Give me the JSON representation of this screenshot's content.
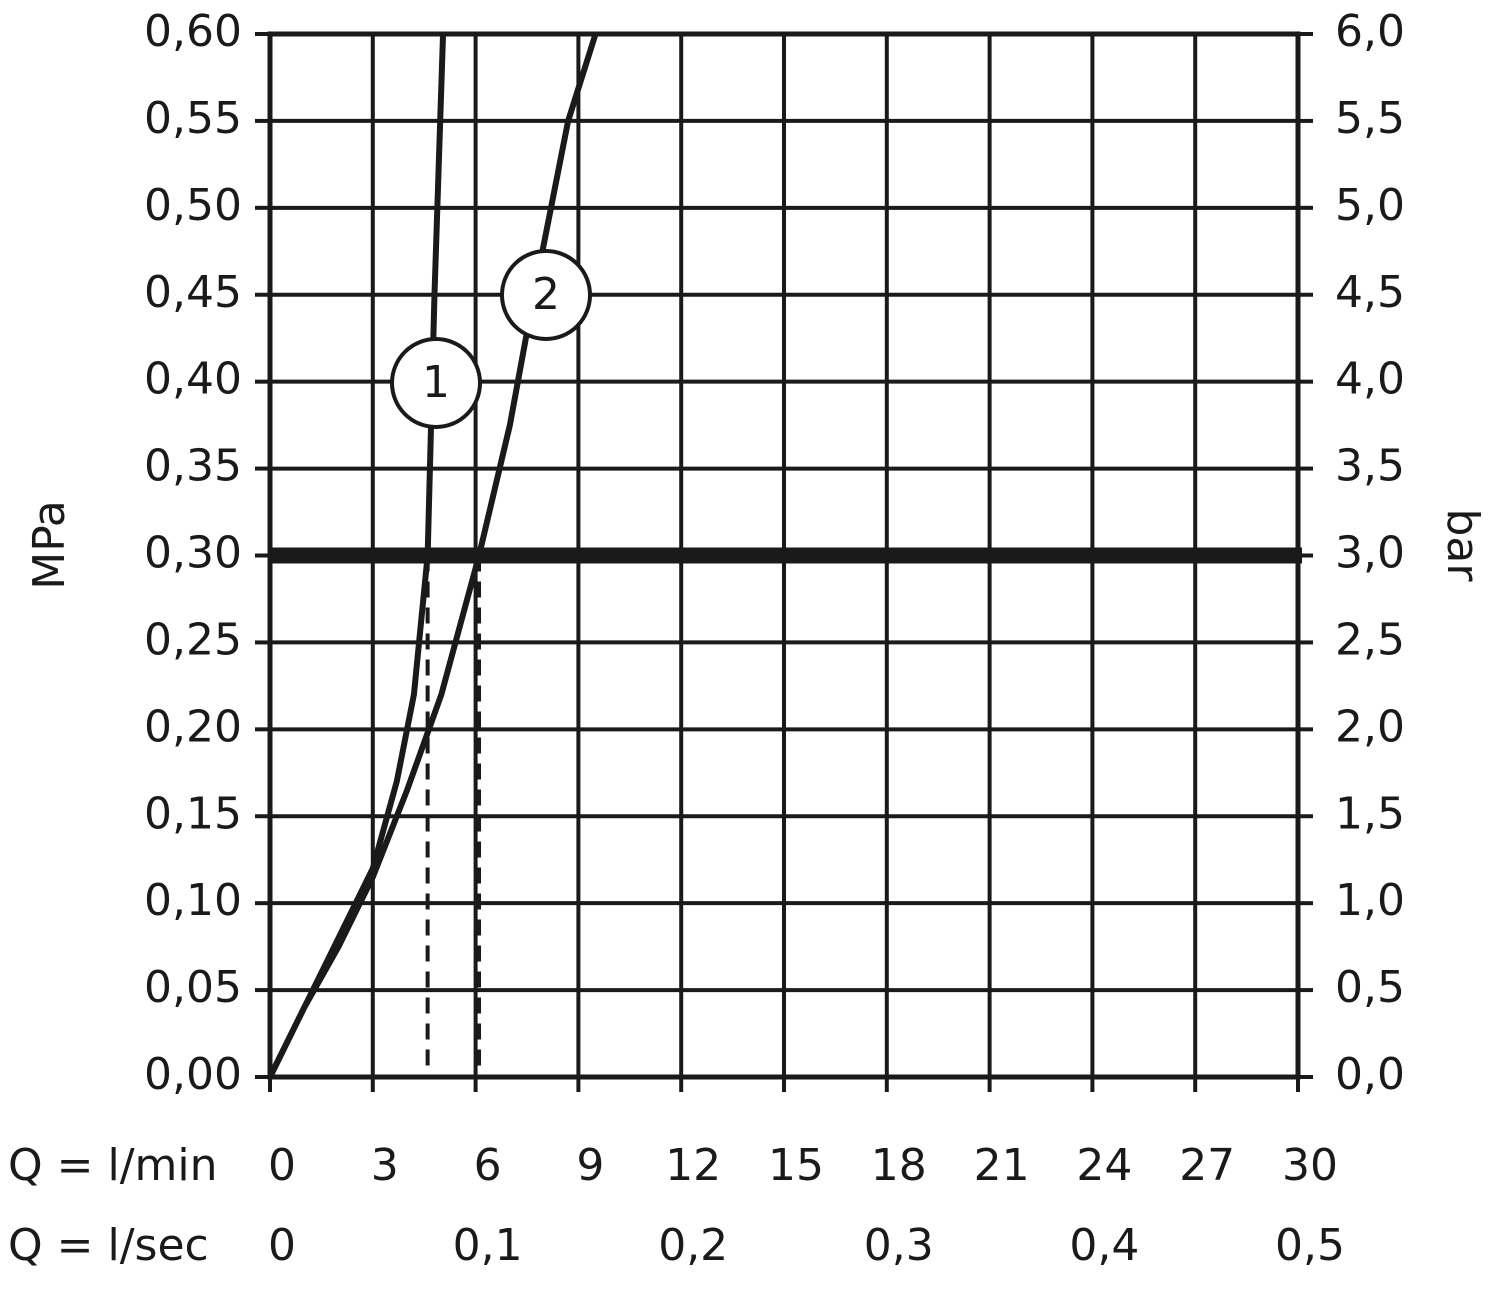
{
  "chart_data": {
    "type": "line",
    "y_label": "MPa",
    "y2_label": "bar",
    "x_label": "Q = l/min",
    "x2_label": "Q = l/sec",
    "xlim": [
      0,
      30
    ],
    "xticks": [
      0,
      3,
      6,
      9,
      12,
      15,
      18,
      21,
      24,
      27,
      30
    ],
    "x2lim": [
      0,
      0.5
    ],
    "x2ticks": [
      {
        "value": 0,
        "label": "0"
      },
      {
        "value": 0.1,
        "label": "0,1"
      },
      {
        "value": 0.2,
        "label": "0,2"
      },
      {
        "value": 0.3,
        "label": "0,3"
      },
      {
        "value": 0.4,
        "label": "0,4"
      },
      {
        "value": 0.5,
        "label": "0,5"
      }
    ],
    "ylim": [
      0,
      0.6
    ],
    "yticks": [
      {
        "value": 0,
        "label": "0,00"
      },
      {
        "value": 0.05,
        "label": "0,05"
      },
      {
        "value": 0.1,
        "label": "0,10"
      },
      {
        "value": 0.15,
        "label": "0,15"
      },
      {
        "value": 0.2,
        "label": "0,20"
      },
      {
        "value": 0.25,
        "label": "0,25"
      },
      {
        "value": 0.3,
        "label": "0,30"
      },
      {
        "value": 0.35,
        "label": "0,35"
      },
      {
        "value": 0.4,
        "label": "0,40"
      },
      {
        "value": 0.45,
        "label": "0,45"
      },
      {
        "value": 0.5,
        "label": "0,50"
      },
      {
        "value": 0.55,
        "label": "0,55"
      },
      {
        "value": 0.6,
        "label": "0,60"
      }
    ],
    "y2lim": [
      0,
      6
    ],
    "y2ticks": [
      {
        "value": 0,
        "label": "0,0"
      },
      {
        "value": 0.5,
        "label": "0,5"
      },
      {
        "value": 1,
        "label": "1,0"
      },
      {
        "value": 1.5,
        "label": "1,5"
      },
      {
        "value": 2,
        "label": "2,0"
      },
      {
        "value": 2.5,
        "label": "2,5"
      },
      {
        "value": 3,
        "label": "3,0"
      },
      {
        "value": 3.5,
        "label": "3,5"
      },
      {
        "value": 4,
        "label": "4,0"
      },
      {
        "value": 4.5,
        "label": "4,5"
      },
      {
        "value": 5,
        "label": "5,0"
      },
      {
        "value": 5.5,
        "label": "5,5"
      },
      {
        "value": 6,
        "label": "6,0"
      }
    ],
    "grid": true,
    "reference_line": 0.3,
    "dashed_x": [
      4.6,
      6.1
    ],
    "series": [
      {
        "name": "1",
        "color": "#1a1a1a",
        "x": [
          0,
          1,
          2,
          3,
          3.7,
          4.2,
          4.6,
          4.8,
          5.05
        ],
        "values": [
          0,
          0.04,
          0.08,
          0.12,
          0.17,
          0.22,
          0.3,
          0.45,
          0.6
        ]
      },
      {
        "name": "2",
        "color": "#1a1a1a",
        "x": [
          0,
          1,
          2,
          3,
          4,
          5,
          6.1,
          7,
          7.7,
          8.7,
          9.5
        ],
        "values": [
          0,
          0.04,
          0.075,
          0.115,
          0.165,
          0.22,
          0.3,
          0.375,
          0.45,
          0.55,
          0.6
        ]
      }
    ]
  }
}
